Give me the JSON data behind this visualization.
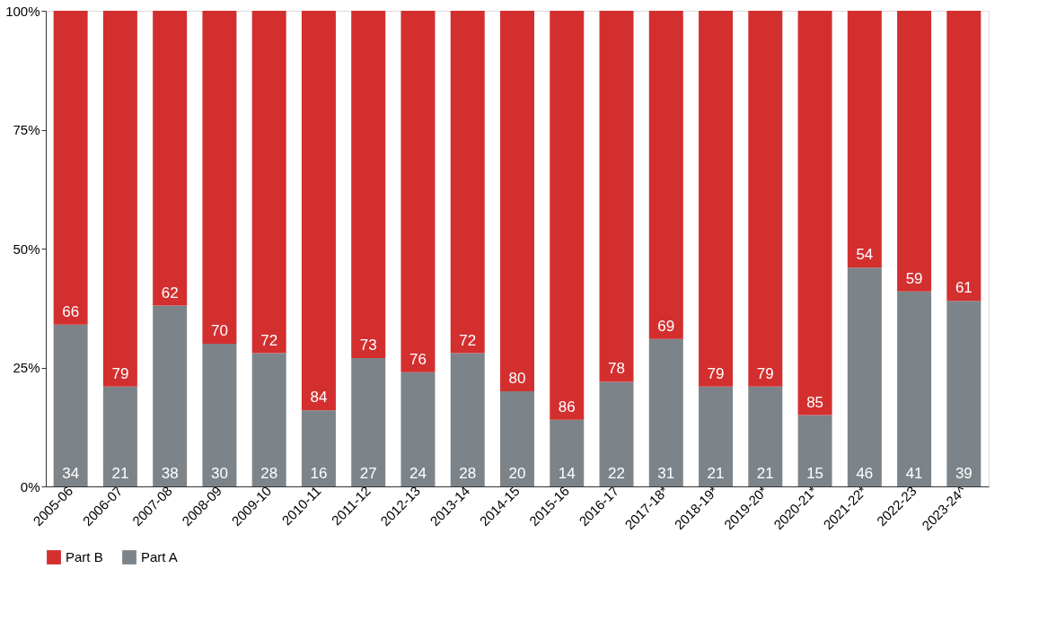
{
  "chart_data": {
    "type": "bar",
    "stacked": true,
    "categories": [
      "2005-06",
      "2006-07",
      "2007-08",
      "2008-09",
      "2009-10",
      "2010-11",
      "2011-12",
      "2012-13",
      "2013-14",
      "2014-15",
      "2015-16",
      "2016-17",
      "2017-18*",
      "2018-19*",
      "2019-20*",
      "2020-21*",
      "2021-22*",
      "2022-23",
      "2023-24^"
    ],
    "series": [
      {
        "name": "Part A",
        "color": "#7d8489",
        "values": [
          34,
          21,
          38,
          30,
          28,
          16,
          27,
          24,
          28,
          20,
          14,
          22,
          31,
          21,
          21,
          15,
          46,
          41,
          39
        ]
      },
      {
        "name": "Part B",
        "color": "#d32f2f",
        "values": [
          66,
          79,
          62,
          70,
          72,
          84,
          73,
          76,
          72,
          80,
          86,
          78,
          69,
          79,
          79,
          85,
          54,
          59,
          61
        ]
      }
    ],
    "ylim": [
      0,
      100
    ],
    "yticks": [
      {
        "value": 0,
        "label": "0%"
      },
      {
        "value": 25,
        "label": "25%"
      },
      {
        "value": 50,
        "label": "50%"
      },
      {
        "value": 75,
        "label": "75%"
      },
      {
        "value": 100,
        "label": "100%"
      }
    ],
    "grid": false,
    "legend": "bottom",
    "data_labels": true
  }
}
